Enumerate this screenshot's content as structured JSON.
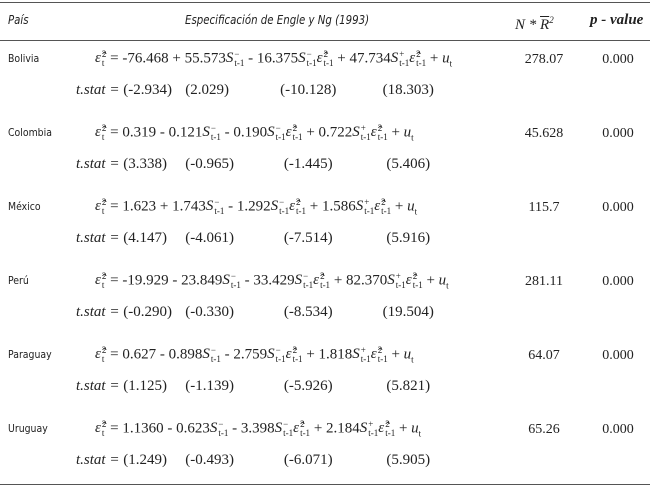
{
  "header": {
    "country": "País",
    "spec": "Especificación de Engle y Ng (1993)",
    "n_star": "N *",
    "r": "R",
    "r_sq": "2",
    "p_value": "p - value"
  },
  "notation": {
    "eps": "ε̂",
    "sq": "2",
    "t": "t",
    "eq": "=",
    "s": "S",
    "neg": "−",
    "pos": "+",
    "lag": "t-1",
    "plus": "+",
    "u": "u",
    "tstat": "t.stat",
    "eq2": "="
  },
  "rows": [
    {
      "country": "Bolivia",
      "coef": [
        "-76.468",
        "+ 55.573",
        "- 16.375",
        "+ 47.734"
      ],
      "tstats": [
        "(-2.934)",
        "(2.029)",
        "(-10.128)",
        "(18.303)"
      ],
      "nr2": "278.07",
      "p": "0.000"
    },
    {
      "country": "Colombia",
      "coef": [
        "0.319",
        "- 0.121",
        "- 0.190",
        "+ 0.722"
      ],
      "tstats": [
        "(3.338)",
        "(-0.965)",
        "(-1.445)",
        "(5.406)"
      ],
      "nr2": "45.628",
      "p": "0.000"
    },
    {
      "country": "México",
      "coef": [
        "1.623",
        "+ 1.743",
        "- 1.292",
        "+ 1.586"
      ],
      "tstats": [
        "(4.147)",
        "(-4.061)",
        "(-7.514)",
        "(5.916)"
      ],
      "nr2": "115.7",
      "p": "0.000"
    },
    {
      "country": "Perú",
      "coef": [
        "-19.929",
        "- 23.849",
        "- 33.429",
        "+ 82.370"
      ],
      "tstats": [
        "(-0.290)",
        "(-0.330)",
        "(-8.534)",
        "(19.504)"
      ],
      "nr2": "281.11",
      "p": "0.000"
    },
    {
      "country": "Paraguay",
      "coef": [
        "0.627",
        "- 0.898",
        "- 2.759",
        "+ 1.818"
      ],
      "tstats": [
        "(1.125)",
        "(-1.139)",
        "(-5.926)",
        "(5.821)"
      ],
      "nr2": "64.07",
      "p": "0.000"
    },
    {
      "country": "Uruguay",
      "coef": [
        "1.1360",
        "- 0.623",
        "- 3.398",
        "+ 2.184"
      ],
      "tstats": [
        "(1.249)",
        "(-0.493)",
        "(-6.071)",
        "(5.905)"
      ],
      "nr2": "65.26",
      "p": "0.000"
    }
  ]
}
